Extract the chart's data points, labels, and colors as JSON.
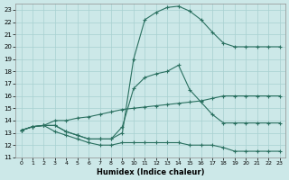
{
  "xlabel": "Humidex (Indice chaleur)",
  "xlim": [
    -0.5,
    23.5
  ],
  "ylim": [
    11,
    23.5
  ],
  "xticks": [
    0,
    1,
    2,
    3,
    4,
    5,
    6,
    7,
    8,
    9,
    10,
    11,
    12,
    13,
    14,
    15,
    16,
    17,
    18,
    19,
    20,
    21,
    22,
    23
  ],
  "yticks": [
    11,
    12,
    13,
    14,
    15,
    16,
    17,
    18,
    19,
    20,
    21,
    22,
    23
  ],
  "bg_color": "#cce8e8",
  "grid_color": "#a8d0d0",
  "line_color": "#2a7060",
  "line1_x": [
    0,
    1,
    2,
    3,
    4,
    5,
    6,
    7,
    8,
    9,
    10,
    11,
    12,
    13,
    14,
    15,
    16,
    17,
    18,
    19,
    20,
    21,
    22,
    23
  ],
  "line1_y": [
    13.2,
    13.5,
    13.6,
    13.6,
    13.1,
    12.8,
    12.5,
    12.5,
    12.5,
    13.0,
    19.0,
    22.2,
    22.8,
    23.2,
    23.3,
    22.9,
    22.2,
    21.2,
    20.3,
    20.0,
    20.0,
    20.0,
    20.0,
    20.0
  ],
  "line2_x": [
    0,
    1,
    2,
    3,
    4,
    5,
    6,
    7,
    8,
    9,
    10,
    11,
    12,
    13,
    14,
    15,
    16,
    17,
    18,
    19,
    20,
    21,
    22,
    23
  ],
  "line2_y": [
    13.2,
    13.5,
    13.6,
    13.6,
    13.1,
    12.8,
    12.5,
    12.5,
    12.5,
    13.5,
    16.6,
    17.5,
    17.8,
    18.0,
    18.5,
    16.5,
    15.5,
    14.5,
    13.8,
    13.8,
    13.8,
    13.8,
    13.8,
    13.8
  ],
  "line3_x": [
    0,
    1,
    2,
    3,
    4,
    5,
    6,
    7,
    8,
    9,
    10,
    11,
    12,
    13,
    14,
    15,
    16,
    17,
    18,
    19,
    20,
    21,
    22,
    23
  ],
  "line3_y": [
    13.2,
    13.5,
    13.6,
    14.0,
    14.0,
    14.2,
    14.3,
    14.5,
    14.7,
    14.9,
    15.0,
    15.1,
    15.2,
    15.3,
    15.4,
    15.5,
    15.6,
    15.8,
    16.0,
    16.0,
    16.0,
    16.0,
    16.0,
    16.0
  ],
  "line4_x": [
    0,
    1,
    2,
    3,
    4,
    5,
    6,
    7,
    8,
    9,
    10,
    11,
    12,
    13,
    14,
    15,
    16,
    17,
    18,
    19,
    20,
    21,
    22,
    23
  ],
  "line4_y": [
    13.2,
    13.5,
    13.6,
    13.1,
    12.8,
    12.5,
    12.2,
    12.0,
    12.0,
    12.2,
    12.2,
    12.2,
    12.2,
    12.2,
    12.2,
    12.0,
    12.0,
    12.0,
    11.8,
    11.5,
    11.5,
    11.5,
    11.5,
    11.5
  ]
}
